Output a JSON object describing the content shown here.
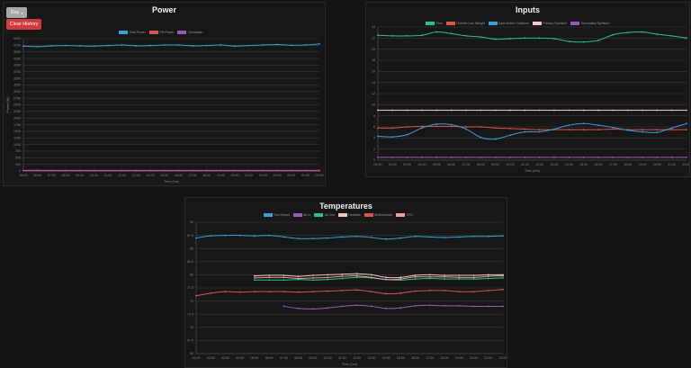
{
  "controls": {
    "range_label": "Day",
    "clear_label": "Clear History"
  },
  "chart_data": [
    {
      "type": "line",
      "title": "Power",
      "xlabel": "Time (hrs)",
      "ylabel": "Power (W)",
      "ylim": [
        0,
        5000
      ],
      "yticks": [
        "0",
        "250",
        "500",
        "750",
        "1000",
        "1250",
        "1500",
        "1750",
        "2000",
        "2250",
        "2500",
        "2750",
        "3000",
        "3250",
        "3500",
        "3750",
        "4000",
        "4250",
        "4500",
        "4750",
        "5000"
      ],
      "categories": [
        "05:00",
        "06:00",
        "07:00",
        "08:00",
        "09:00",
        "10:00",
        "11:00",
        "12:00",
        "13:00",
        "14:00",
        "15:00",
        "16:00",
        "17:00",
        "18:00",
        "19:00",
        "20:00",
        "21:00",
        "22:00",
        "23:00",
        "00:00",
        "01:00",
        "02:00"
      ],
      "series": [
        {
          "name": "Total Power",
          "color": "#3a9fd6",
          "values": [
            4720,
            4700,
            4730,
            4740,
            4730,
            4720,
            4740,
            4760,
            4730,
            4740,
            4760,
            4760,
            4730,
            4740,
            4760,
            4720,
            4740,
            4760,
            4780,
            4750,
            4760,
            4800
          ]
        },
        {
          "name": "PM Power",
          "color": "#d9534f",
          "values": [
            20,
            25,
            20,
            20,
            22,
            20,
            20,
            20,
            20,
            20,
            20,
            20,
            20,
            20,
            20,
            20,
            20,
            20,
            20,
            20,
            20,
            20
          ]
        },
        {
          "name": "Circulation",
          "color": "#9b59b6",
          "values": [
            5,
            5,
            5,
            5,
            5,
            5,
            5,
            5,
            5,
            5,
            5,
            5,
            5,
            5,
            5,
            5,
            5,
            5,
            5,
            5,
            5,
            5
          ]
        }
      ]
    },
    {
      "type": "line",
      "title": "Inputs",
      "xlabel": "Time (hrs)",
      "ylim": [
        0,
        24
      ],
      "yticks": [
        "0",
        "2",
        "4",
        "6",
        "8",
        "10",
        "12",
        "14",
        "16",
        "18",
        "20",
        "22",
        "24"
      ],
      "categories": [
        "01:00",
        "02:00",
        "03:00",
        "04:00",
        "05:00",
        "06:00",
        "07:00",
        "08:00",
        "09:00",
        "10:00",
        "11:00",
        "12:00",
        "13:00",
        "14:00",
        "15:00",
        "16:00",
        "17:00",
        "18:00",
        "19:00",
        "20:00",
        "21:00",
        "22:00"
      ],
      "series": [
        {
          "name": "Flow",
          "color": "#2ebf91",
          "values": [
            22.5,
            22.4,
            22.4,
            22.5,
            23.1,
            22.8,
            22.4,
            22.2,
            21.8,
            21.9,
            22.0,
            22.0,
            21.9,
            21.4,
            21.3,
            21.6,
            22.6,
            23.0,
            23.1,
            22.7,
            22.4,
            22.0
          ]
        },
        {
          "name": "Outside Line Weight",
          "color": "#d9534f",
          "values": [
            5.8,
            5.8,
            6.0,
            6.1,
            6.1,
            6.1,
            6.0,
            6.0,
            5.8,
            5.7,
            5.6,
            5.5,
            5.5,
            5.5,
            5.5,
            5.5,
            5.6,
            5.5,
            5.5,
            5.5,
            5.5,
            5.5
          ]
        },
        {
          "name": "Input Active Solutions",
          "color": "#3a9fd6",
          "values": [
            4.3,
            4.2,
            4.6,
            5.8,
            6.5,
            6.4,
            5.6,
            4.1,
            3.8,
            4.5,
            5.1,
            5.1,
            5.6,
            6.3,
            6.6,
            6.3,
            5.9,
            5.4,
            5.1,
            5.0,
            5.8,
            6.6
          ]
        },
        {
          "name": "Primary Sprinkler",
          "color": "#f0c9c0",
          "values": [
            9,
            9,
            9,
            9,
            9,
            9,
            9,
            9,
            9,
            9,
            9,
            9,
            9,
            9,
            9,
            9,
            9,
            9,
            9,
            9,
            9,
            9
          ]
        },
        {
          "name": "Secondary Sprinkler",
          "color": "#9b59b6",
          "values": [
            0.5,
            0.5,
            0.5,
            0.5,
            0.5,
            0.5,
            0.5,
            0.5,
            0.5,
            0.5,
            0.5,
            0.5,
            0.5,
            0.5,
            0.5,
            0.5,
            0.5,
            0.5,
            0.5,
            0.5,
            0.5,
            0.5
          ]
        }
      ]
    },
    {
      "type": "line",
      "title": "Temperatures",
      "xlabel": "Time (hrs)",
      "ylim": [
        65,
        90
      ],
      "yticks": [
        "65",
        "67.5",
        "70",
        "72.5",
        "75",
        "77.5",
        "80",
        "82.5",
        "85",
        "87.5",
        "90"
      ],
      "categories": [
        "01:00",
        "02:00",
        "03:00",
        "04:00",
        "05:00",
        "06:00",
        "07:00",
        "08:00",
        "09:00",
        "10:00",
        "11:00",
        "12:00",
        "13:00",
        "14:00",
        "15:00",
        "16:00",
        "17:00",
        "18:00",
        "19:00",
        "20:00",
        "21:00",
        "22:00"
      ],
      "series": [
        {
          "name": "Fan Speed",
          "color": "#3a9fd6",
          "values": [
            87.0,
            87.4,
            87.5,
            87.5,
            87.4,
            87.5,
            87.2,
            86.9,
            86.9,
            87.0,
            87.2,
            87.3,
            87.1,
            86.8,
            87.0,
            87.3,
            87.2,
            87.1,
            87.2,
            87.3,
            87.3,
            87.4
          ]
        },
        {
          "name": "Air In",
          "color": "#9b59b6",
          "values": [
            null,
            null,
            null,
            null,
            null,
            null,
            74.0,
            73.6,
            73.5,
            73.7,
            74.0,
            74.2,
            74.0,
            73.6,
            73.7,
            74.1,
            74.2,
            74.1,
            74.1,
            74.0,
            74.0,
            74.0
          ]
        },
        {
          "name": "Air Out",
          "color": "#2ebf91",
          "values": [
            null,
            null,
            null,
            null,
            79.0,
            79.0,
            79.0,
            79.1,
            79.0,
            79.1,
            79.3,
            79.5,
            79.4,
            79.1,
            79.0,
            79.2,
            79.3,
            79.2,
            79.2,
            79.2,
            79.3,
            79.4
          ]
        },
        {
          "name": "Heatsink",
          "color": "#f0c9c0",
          "values": [
            null,
            null,
            null,
            null,
            79.8,
            79.9,
            79.9,
            79.7,
            79.9,
            80.0,
            80.1,
            80.2,
            80.0,
            79.5,
            79.5,
            79.9,
            80.0,
            79.9,
            79.9,
            79.9,
            80.0,
            80.0
          ]
        },
        {
          "name": "Motherboard",
          "color": "#d9534f",
          "values": [
            76.0,
            76.5,
            76.8,
            76.7,
            76.8,
            76.8,
            76.8,
            76.7,
            76.8,
            76.9,
            77.0,
            77.1,
            76.8,
            76.4,
            76.5,
            76.9,
            77.0,
            77.0,
            76.8,
            76.8,
            77.0,
            77.2
          ]
        },
        {
          "name": "CPU",
          "color": "#e8a0a0",
          "values": [
            null,
            null,
            null,
            null,
            79.4,
            79.5,
            79.5,
            79.3,
            79.4,
            79.5,
            79.7,
            79.8,
            79.5,
            79.1,
            79.2,
            79.6,
            79.6,
            79.6,
            79.5,
            79.5,
            79.7,
            79.8
          ]
        }
      ]
    }
  ]
}
